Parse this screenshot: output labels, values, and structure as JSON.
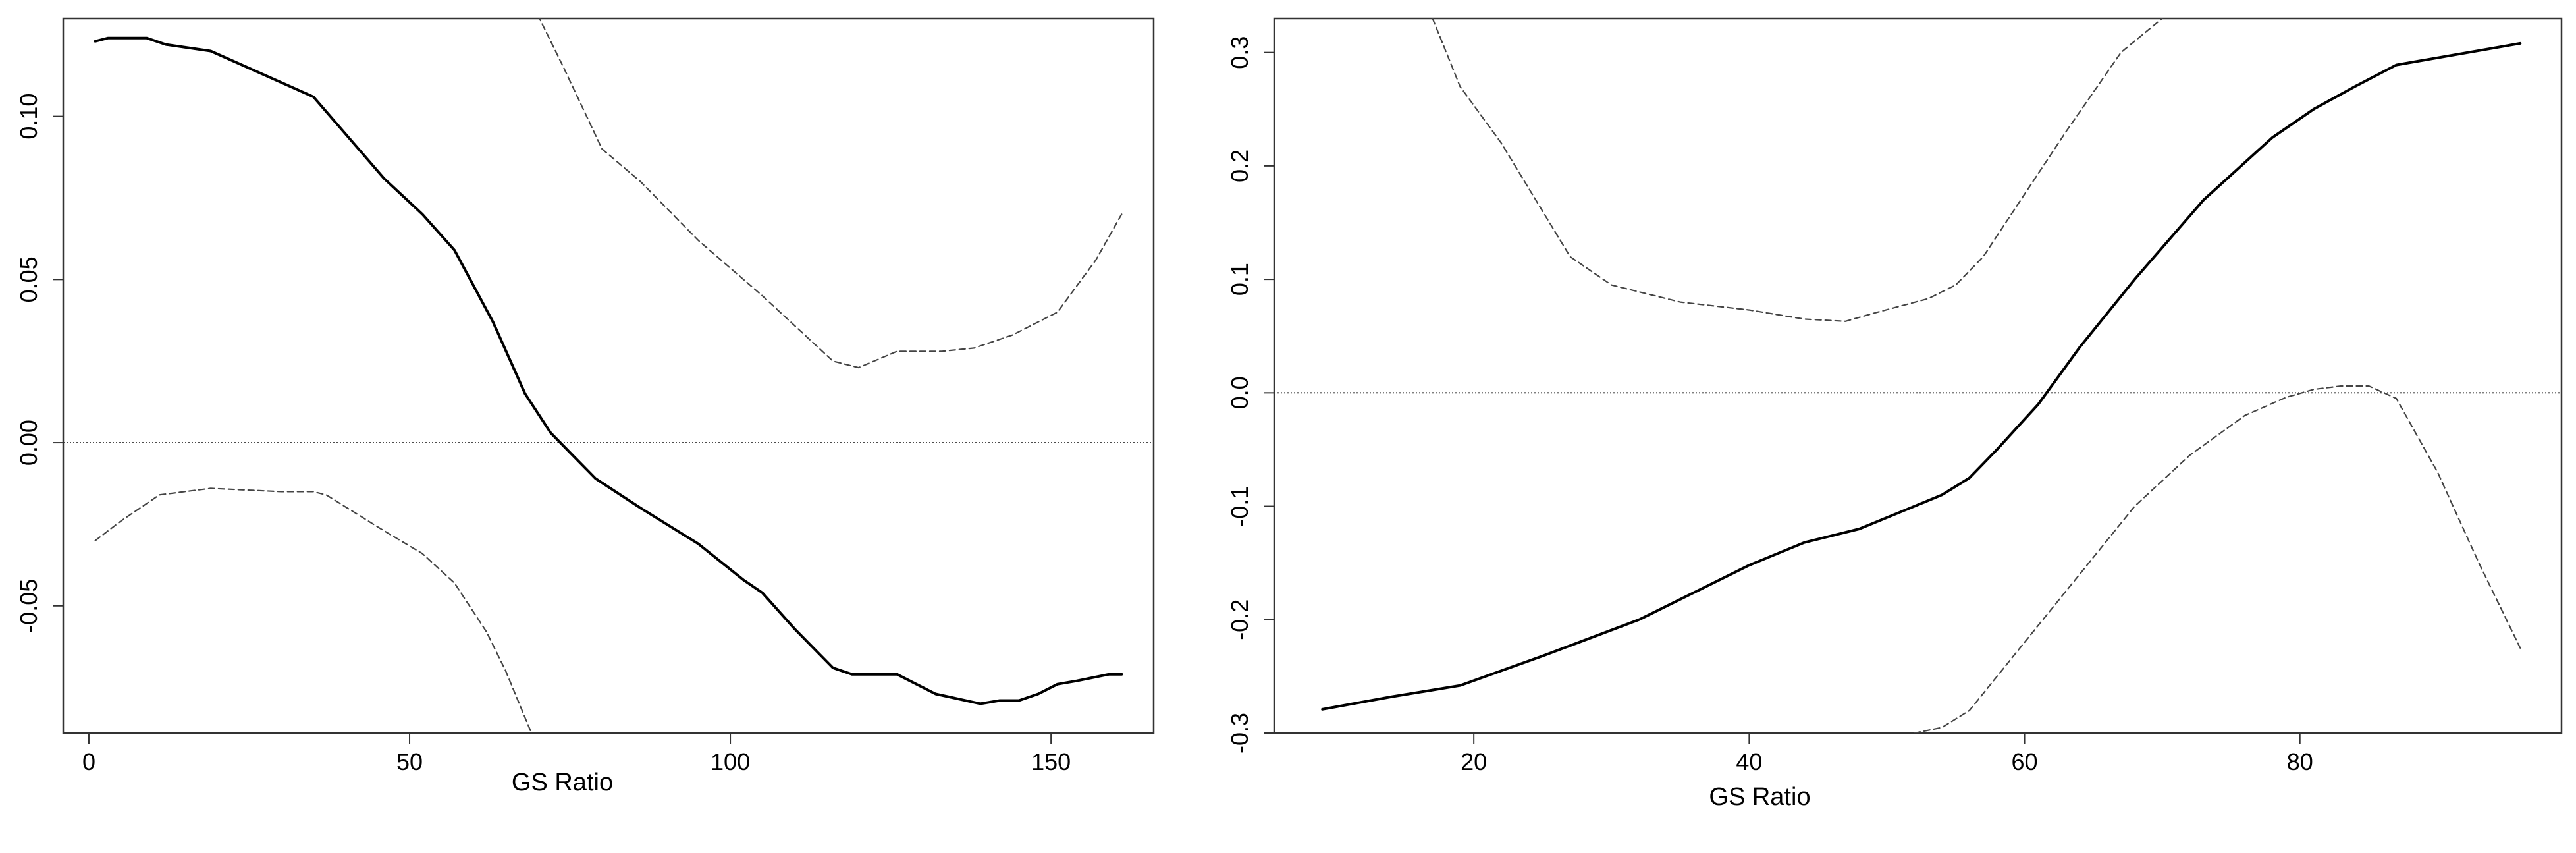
{
  "chart_data": [
    {
      "type": "line",
      "xlabel": "GS  Ratio",
      "ylabel": "",
      "xlim": [
        -4,
        166
      ],
      "ylim": [
        -0.089,
        0.13
      ],
      "xticks": [
        0,
        50,
        100,
        150
      ],
      "xtick_labels": [
        "0",
        "50",
        "100",
        "150"
      ],
      "yticks": [
        -0.05,
        0.0,
        0.05,
        0.1
      ],
      "ytick_labels": [
        "-0.05",
        "0.00",
        "0.05",
        "0.10"
      ],
      "reference_line_y": 0.0,
      "series": [
        {
          "style": "solid",
          "x": [
            1,
            3,
            9,
            12,
            19,
            35,
            46,
            52,
            57,
            63,
            68,
            72,
            79,
            86,
            95,
            102,
            105,
            110,
            116,
            119,
            126,
            132,
            139,
            142,
            145,
            148,
            151,
            154,
            159,
            161
          ],
          "y": [
            0.123,
            0.124,
            0.124,
            0.122,
            0.12,
            0.106,
            0.081,
            0.07,
            0.059,
            0.037,
            0.015,
            0.003,
            -0.011,
            -0.02,
            -0.031,
            -0.042,
            -0.046,
            -0.057,
            -0.069,
            -0.071,
            -0.071,
            -0.077,
            -0.08,
            -0.079,
            -0.079,
            -0.077,
            -0.074,
            -0.073,
            -0.071,
            -0.071
          ]
        },
        {
          "style": "dashed",
          "x": [
            1,
            5,
            11,
            19,
            30,
            35,
            37,
            46,
            52,
            57,
            62,
            65,
            69
          ],
          "y": [
            -0.03,
            -0.024,
            -0.016,
            -0.014,
            -0.015,
            -0.015,
            -0.016,
            -0.027,
            -0.034,
            -0.043,
            -0.058,
            -0.07,
            -0.089
          ]
        },
        {
          "style": "dashed",
          "x": [
            70,
            74,
            80,
            86,
            95,
            105,
            116,
            120,
            126,
            133,
            138,
            144,
            151,
            157,
            161
          ],
          "y": [
            0.131,
            0.115,
            0.09,
            0.08,
            0.062,
            0.045,
            0.025,
            0.023,
            0.028,
            0.028,
            0.029,
            0.033,
            0.04,
            0.056,
            0.07
          ]
        }
      ]
    },
    {
      "type": "line",
      "xlabel": "GS  Ratio",
      "ylabel": "",
      "xlim": [
        5.5,
        99
      ],
      "ylim": [
        -0.3,
        0.33
      ],
      "xticks": [
        20,
        40,
        60,
        80
      ],
      "xtick_labels": [
        "20",
        "40",
        "60",
        "80"
      ],
      "yticks": [
        -0.3,
        -0.2,
        -0.1,
        0.0,
        0.1,
        0.2,
        0.3
      ],
      "ytick_labels": [
        "-0.3",
        "-0.2",
        "-0.1",
        "0.0",
        "0.1",
        "0.2",
        "0.3"
      ],
      "reference_line_y": 0.0,
      "series": [
        {
          "style": "solid",
          "x": [
            9,
            14,
            19,
            25,
            32,
            40,
            44,
            48,
            51,
            54,
            56,
            58,
            61,
            64,
            68,
            73,
            78,
            81,
            84,
            87,
            96
          ],
          "y": [
            -0.279,
            -0.268,
            -0.258,
            -0.232,
            -0.2,
            -0.152,
            -0.132,
            -0.12,
            -0.105,
            -0.09,
            -0.075,
            -0.05,
            -0.01,
            0.04,
            0.1,
            0.17,
            0.225,
            0.25,
            0.27,
            0.289,
            0.308
          ]
        },
        {
          "style": "dashed",
          "x": [
            17,
            19,
            22,
            27,
            30,
            35,
            40,
            44,
            47,
            49,
            53,
            55,
            57,
            60,
            63,
            67,
            70
          ],
          "y": [
            0.33,
            0.27,
            0.22,
            0.12,
            0.095,
            0.08,
            0.073,
            0.065,
            0.063,
            0.07,
            0.083,
            0.095,
            0.12,
            0.175,
            0.23,
            0.3,
            0.33
          ]
        },
        {
          "style": "dashed",
          "x": [
            52,
            54,
            56,
            58,
            60,
            64,
            68,
            72,
            76,
            79,
            81,
            83,
            85,
            87,
            90,
            93,
            96
          ],
          "y": [
            -0.3,
            -0.295,
            -0.28,
            -0.25,
            -0.22,
            -0.16,
            -0.1,
            -0.055,
            -0.02,
            -0.004,
            0.003,
            0.006,
            0.006,
            -0.005,
            -0.07,
            -0.15,
            -0.225
          ]
        }
      ]
    }
  ]
}
